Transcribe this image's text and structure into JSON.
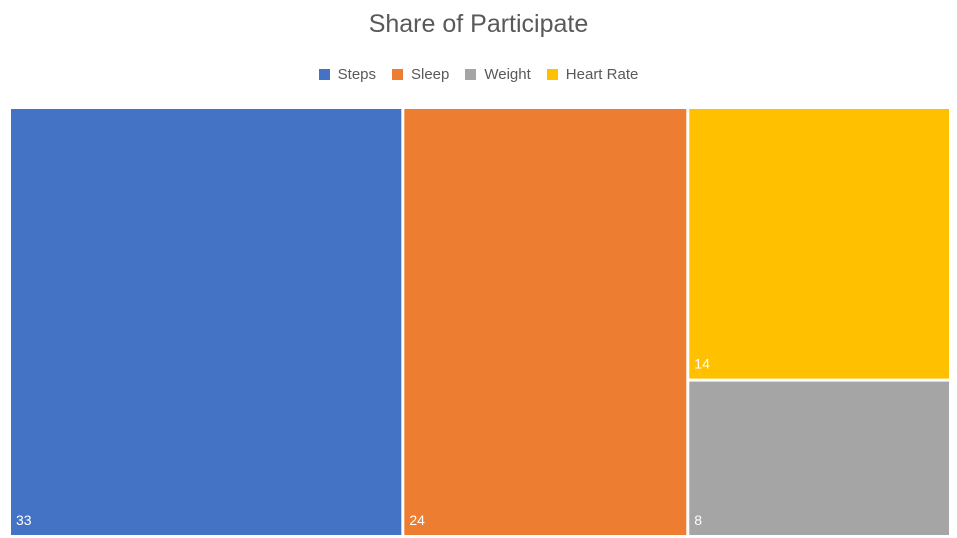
{
  "chart_data": {
    "type": "treemap",
    "title": "Share of Participate",
    "legend_position": "top",
    "categories": [
      "Steps",
      "Sleep",
      "Weight",
      "Heart Rate"
    ],
    "values": [
      33,
      24,
      8,
      14
    ],
    "colors": {
      "Steps": "#4472C4",
      "Sleep": "#ED7D31",
      "Weight": "#A5A5A5",
      "Heart Rate": "#FFC000"
    },
    "data_labels": true
  }
}
